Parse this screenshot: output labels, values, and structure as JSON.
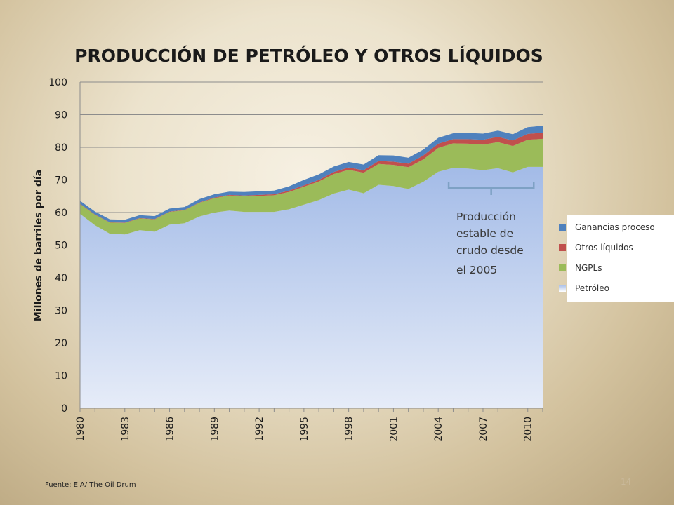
{
  "slide": {
    "source": "Fuente: EIA/ The Oil Drum",
    "page_number": "14"
  },
  "chart_data": {
    "type": "area",
    "stacked": true,
    "title": "PRODUCCIÓN DE PETRÓLEO Y OTROS LÍQUIDOS",
    "ylabel": "Millones de barriles por día",
    "xlabel": "",
    "ylim": [
      0,
      100
    ],
    "yticks": [
      0,
      10,
      20,
      30,
      40,
      50,
      60,
      70,
      80,
      90,
      100
    ],
    "xticks": [
      "1980",
      "1983",
      "1986",
      "1989",
      "1992",
      "1995",
      "1998",
      "2001",
      "2004",
      "2007",
      "2010"
    ],
    "grid": "horizontal",
    "legend_position": "right",
    "annotation": {
      "lines": [
        "Producción",
        "estable de",
        "crudo desde",
        "el  2005"
      ],
      "bracket_from": 2004.7,
      "bracket_to": 2010.4
    },
    "x": [
      1980,
      1981,
      1982,
      1983,
      1984,
      1985,
      1986,
      1987,
      1988,
      1989,
      1990,
      1991,
      1992,
      1993,
      1994,
      1995,
      1996,
      1997,
      1998,
      1999,
      2000,
      2001,
      2002,
      2003,
      2004,
      2005,
      2006,
      2007,
      2008,
      2009,
      2010,
      2011
    ],
    "series": [
      {
        "name": "Petróleo",
        "color": "#a9bfe8",
        "values": [
          59.6,
          56.1,
          53.5,
          53.3,
          54.6,
          54.1,
          56.3,
          56.7,
          58.8,
          60.0,
          60.6,
          60.2,
          60.2,
          60.2,
          61.0,
          62.4,
          63.8,
          65.8,
          67.0,
          65.9,
          68.5,
          68.1,
          67.2,
          69.4,
          72.5,
          73.7,
          73.5,
          73.0,
          73.6,
          72.3,
          74.0,
          74.0
        ]
      },
      {
        "name": "NGPLs",
        "color": "#9bbb59",
        "values": [
          3.0,
          3.2,
          3.4,
          3.5,
          3.6,
          3.8,
          3.9,
          4.0,
          4.2,
          4.4,
          4.6,
          4.8,
          4.9,
          5.1,
          5.3,
          5.5,
          5.7,
          6.0,
          6.1,
          6.3,
          6.4,
          6.5,
          6.7,
          6.9,
          7.3,
          7.5,
          7.6,
          7.8,
          8.0,
          8.1,
          8.3,
          8.6
        ]
      },
      {
        "name": "Otros líquidos",
        "color": "#c0504d",
        "values": [
          0.1,
          0.1,
          0.1,
          0.1,
          0.1,
          0.1,
          0.1,
          0.1,
          0.1,
          0.2,
          0.2,
          0.2,
          0.3,
          0.3,
          0.4,
          0.4,
          0.5,
          0.6,
          0.7,
          0.8,
          0.9,
          1.0,
          1.1,
          1.2,
          1.3,
          1.3,
          1.4,
          1.5,
          1.6,
          1.7,
          1.8,
          1.9
        ]
      },
      {
        "name": "Ganancias proceso",
        "color": "#4f81bd",
        "values": [
          0.9,
          0.9,
          0.9,
          0.9,
          0.9,
          0.9,
          0.9,
          0.9,
          1.0,
          1.0,
          1.0,
          1.1,
          1.1,
          1.1,
          1.3,
          1.7,
          1.7,
          1.7,
          1.7,
          1.7,
          1.8,
          1.9,
          1.8,
          1.8,
          1.8,
          1.8,
          1.9,
          1.9,
          1.9,
          1.9,
          2.1,
          2.1
        ]
      }
    ]
  }
}
